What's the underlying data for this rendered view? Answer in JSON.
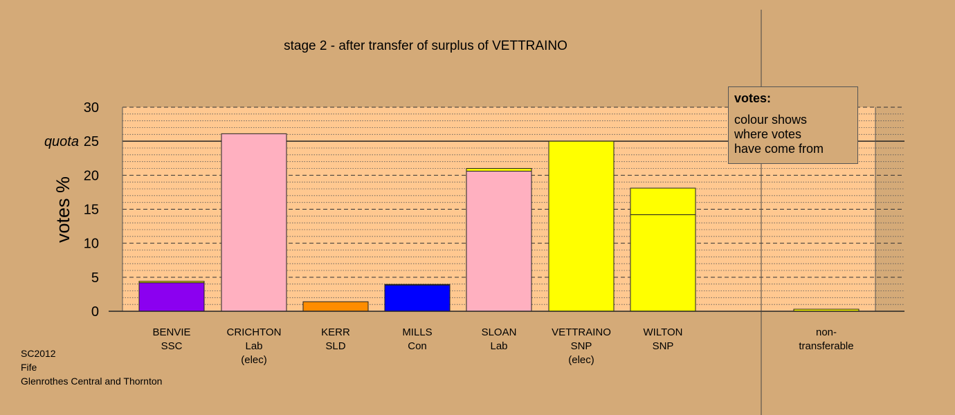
{
  "chart_data": {
    "type": "bar",
    "title": "stage 2 - after transfer of surplus of VETTRAINO",
    "ylabel": "votes %",
    "ylim": [
      0,
      30
    ],
    "yticks": [
      0,
      5,
      10,
      15,
      20,
      25,
      30
    ],
    "quota": 25,
    "quota_label": "quota",
    "categories": [
      {
        "name": "BENVIE",
        "party": "SSC",
        "status": ""
      },
      {
        "name": "CRICHTON",
        "party": "Lab",
        "status": "(elec)"
      },
      {
        "name": "KERR",
        "party": "SLD",
        "status": ""
      },
      {
        "name": "MILLS",
        "party": "Con",
        "status": ""
      },
      {
        "name": "SLOAN",
        "party": "Lab",
        "status": ""
      },
      {
        "name": "VETTRAINO",
        "party": "SNP",
        "status": "(elec)"
      },
      {
        "name": "WILTON",
        "party": "SNP",
        "status": ""
      },
      {
        "name": "non-",
        "party": "transferable",
        "status": ""
      }
    ],
    "bars": [
      {
        "segments": [
          {
            "value": 4.2,
            "color": "#8b00f0"
          },
          {
            "value": 0.2,
            "color": "#ffff00"
          }
        ]
      },
      {
        "segments": [
          {
            "value": 26.1,
            "color": "#ffb0c0"
          }
        ]
      },
      {
        "segments": [
          {
            "value": 1.4,
            "color": "#ff8c00"
          }
        ]
      },
      {
        "segments": [
          {
            "value": 3.85,
            "color": "#0000ff"
          },
          {
            "value": 0.1,
            "color": "#ffff00"
          }
        ]
      },
      {
        "segments": [
          {
            "value": 20.6,
            "color": "#ffb0c0"
          },
          {
            "value": 0.4,
            "color": "#ffff00"
          }
        ]
      },
      {
        "segments": [
          {
            "value": 25.0,
            "color": "#ffff00"
          }
        ]
      },
      {
        "segments": [
          {
            "value": 14.2,
            "color": "#ffff00"
          },
          {
            "value": 3.9,
            "color": "#ffff00"
          }
        ]
      },
      {
        "segments": [
          {
            "value": 0.3,
            "color": "#ffff00"
          }
        ]
      }
    ],
    "colors": {
      "background": "#d4aa78",
      "plot_area": "#ffc890"
    },
    "grid": true
  },
  "legend": {
    "title": "votes:",
    "lines": [
      "colour shows",
      "where votes",
      "have come from"
    ]
  },
  "footer": {
    "line1": "SC2012",
    "line2": "Fife",
    "line3": "Glenrothes Central and Thornton"
  }
}
